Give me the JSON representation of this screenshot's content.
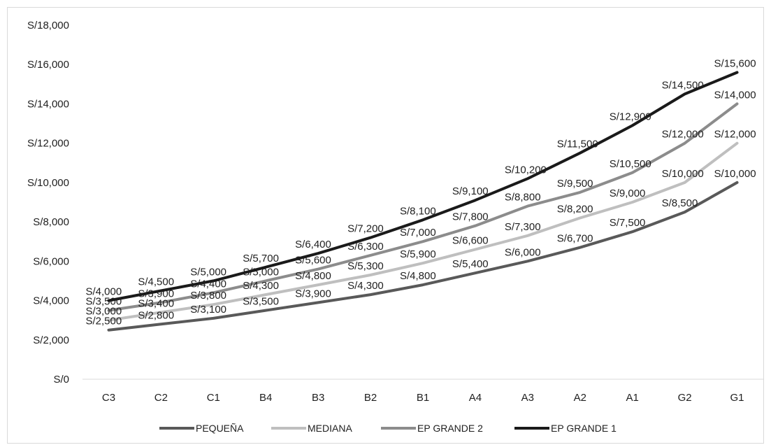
{
  "chart_data": {
    "type": "line",
    "categories": [
      "C3",
      "C2",
      "C1",
      "B4",
      "B3",
      "B2",
      "B1",
      "A4",
      "A3",
      "A2",
      "A1",
      "G2",
      "G1"
    ],
    "ylim": [
      0,
      18000
    ],
    "yticks": [
      0,
      2000,
      4000,
      6000,
      8000,
      10000,
      12000,
      14000,
      16000,
      18000
    ],
    "ytick_labels": [
      "S/0",
      "S/2,000",
      "S/4,000",
      "S/6,000",
      "S/8,000",
      "S/10,000",
      "S/12,000",
      "S/14,000",
      "S/16,000",
      "S/18,000"
    ],
    "grid": false,
    "legend_position": "bottom",
    "series": [
      {
        "name": "PEQUEÑA",
        "color": "#595959",
        "values": [
          2500,
          2800,
          3100,
          3500,
          3900,
          4300,
          4800,
          5400,
          6000,
          6700,
          7500,
          8500,
          10000
        ],
        "labels": [
          "S/2,500",
          "S/2,800",
          "S/3,100",
          "S/3,500",
          "S/3,900",
          "S/4,300",
          "S/4,800",
          "S/5,400",
          "S/6,000",
          "S/6,700",
          "S/7,500",
          "S/8,500",
          "S/10,000"
        ]
      },
      {
        "name": "MEDIANA",
        "color": "#bfbfbf",
        "values": [
          3000,
          3400,
          3800,
          4300,
          4800,
          5300,
          5900,
          6600,
          7300,
          8200,
          9000,
          10000,
          12000
        ],
        "labels": [
          "S/3,000",
          "S/3,400",
          "S/3,800",
          "S/4,300",
          "S/4,800",
          "S/5,300",
          "S/5,900",
          "S/6,600",
          "S/7,300",
          "S/8,200",
          "S/9,000",
          "S/10,000",
          "S/12,000"
        ]
      },
      {
        "name": "EP GRANDE 2",
        "color": "#8c8c8c",
        "values": [
          3500,
          3900,
          4400,
          5000,
          5600,
          6300,
          7000,
          7800,
          8800,
          9500,
          10500,
          12000,
          14000
        ],
        "labels": [
          "S/3,500",
          "S/3,900",
          "S/4,400",
          "S/5,000",
          "S/5,600",
          "S/6,300",
          "S/7,000",
          "S/7,800",
          "S/8,800",
          "S/9,500",
          "S/10,500",
          "S/12,000",
          "S/14,000"
        ]
      },
      {
        "name": "EP GRANDE 1",
        "color": "#1a1a1a",
        "values": [
          4000,
          4500,
          5000,
          5700,
          6400,
          7200,
          8100,
          9100,
          10200,
          11500,
          12900,
          14500,
          15600
        ],
        "labels": [
          "S/4,000",
          "S/4,500",
          "S/5,000",
          "S/5,700",
          "S/6,400",
          "S/7,200",
          "S/8,100",
          "S/9,100",
          "S/10,200",
          "S/11,500",
          "S/12,900",
          "S/14,500",
          "S/15,600"
        ]
      }
    ]
  }
}
